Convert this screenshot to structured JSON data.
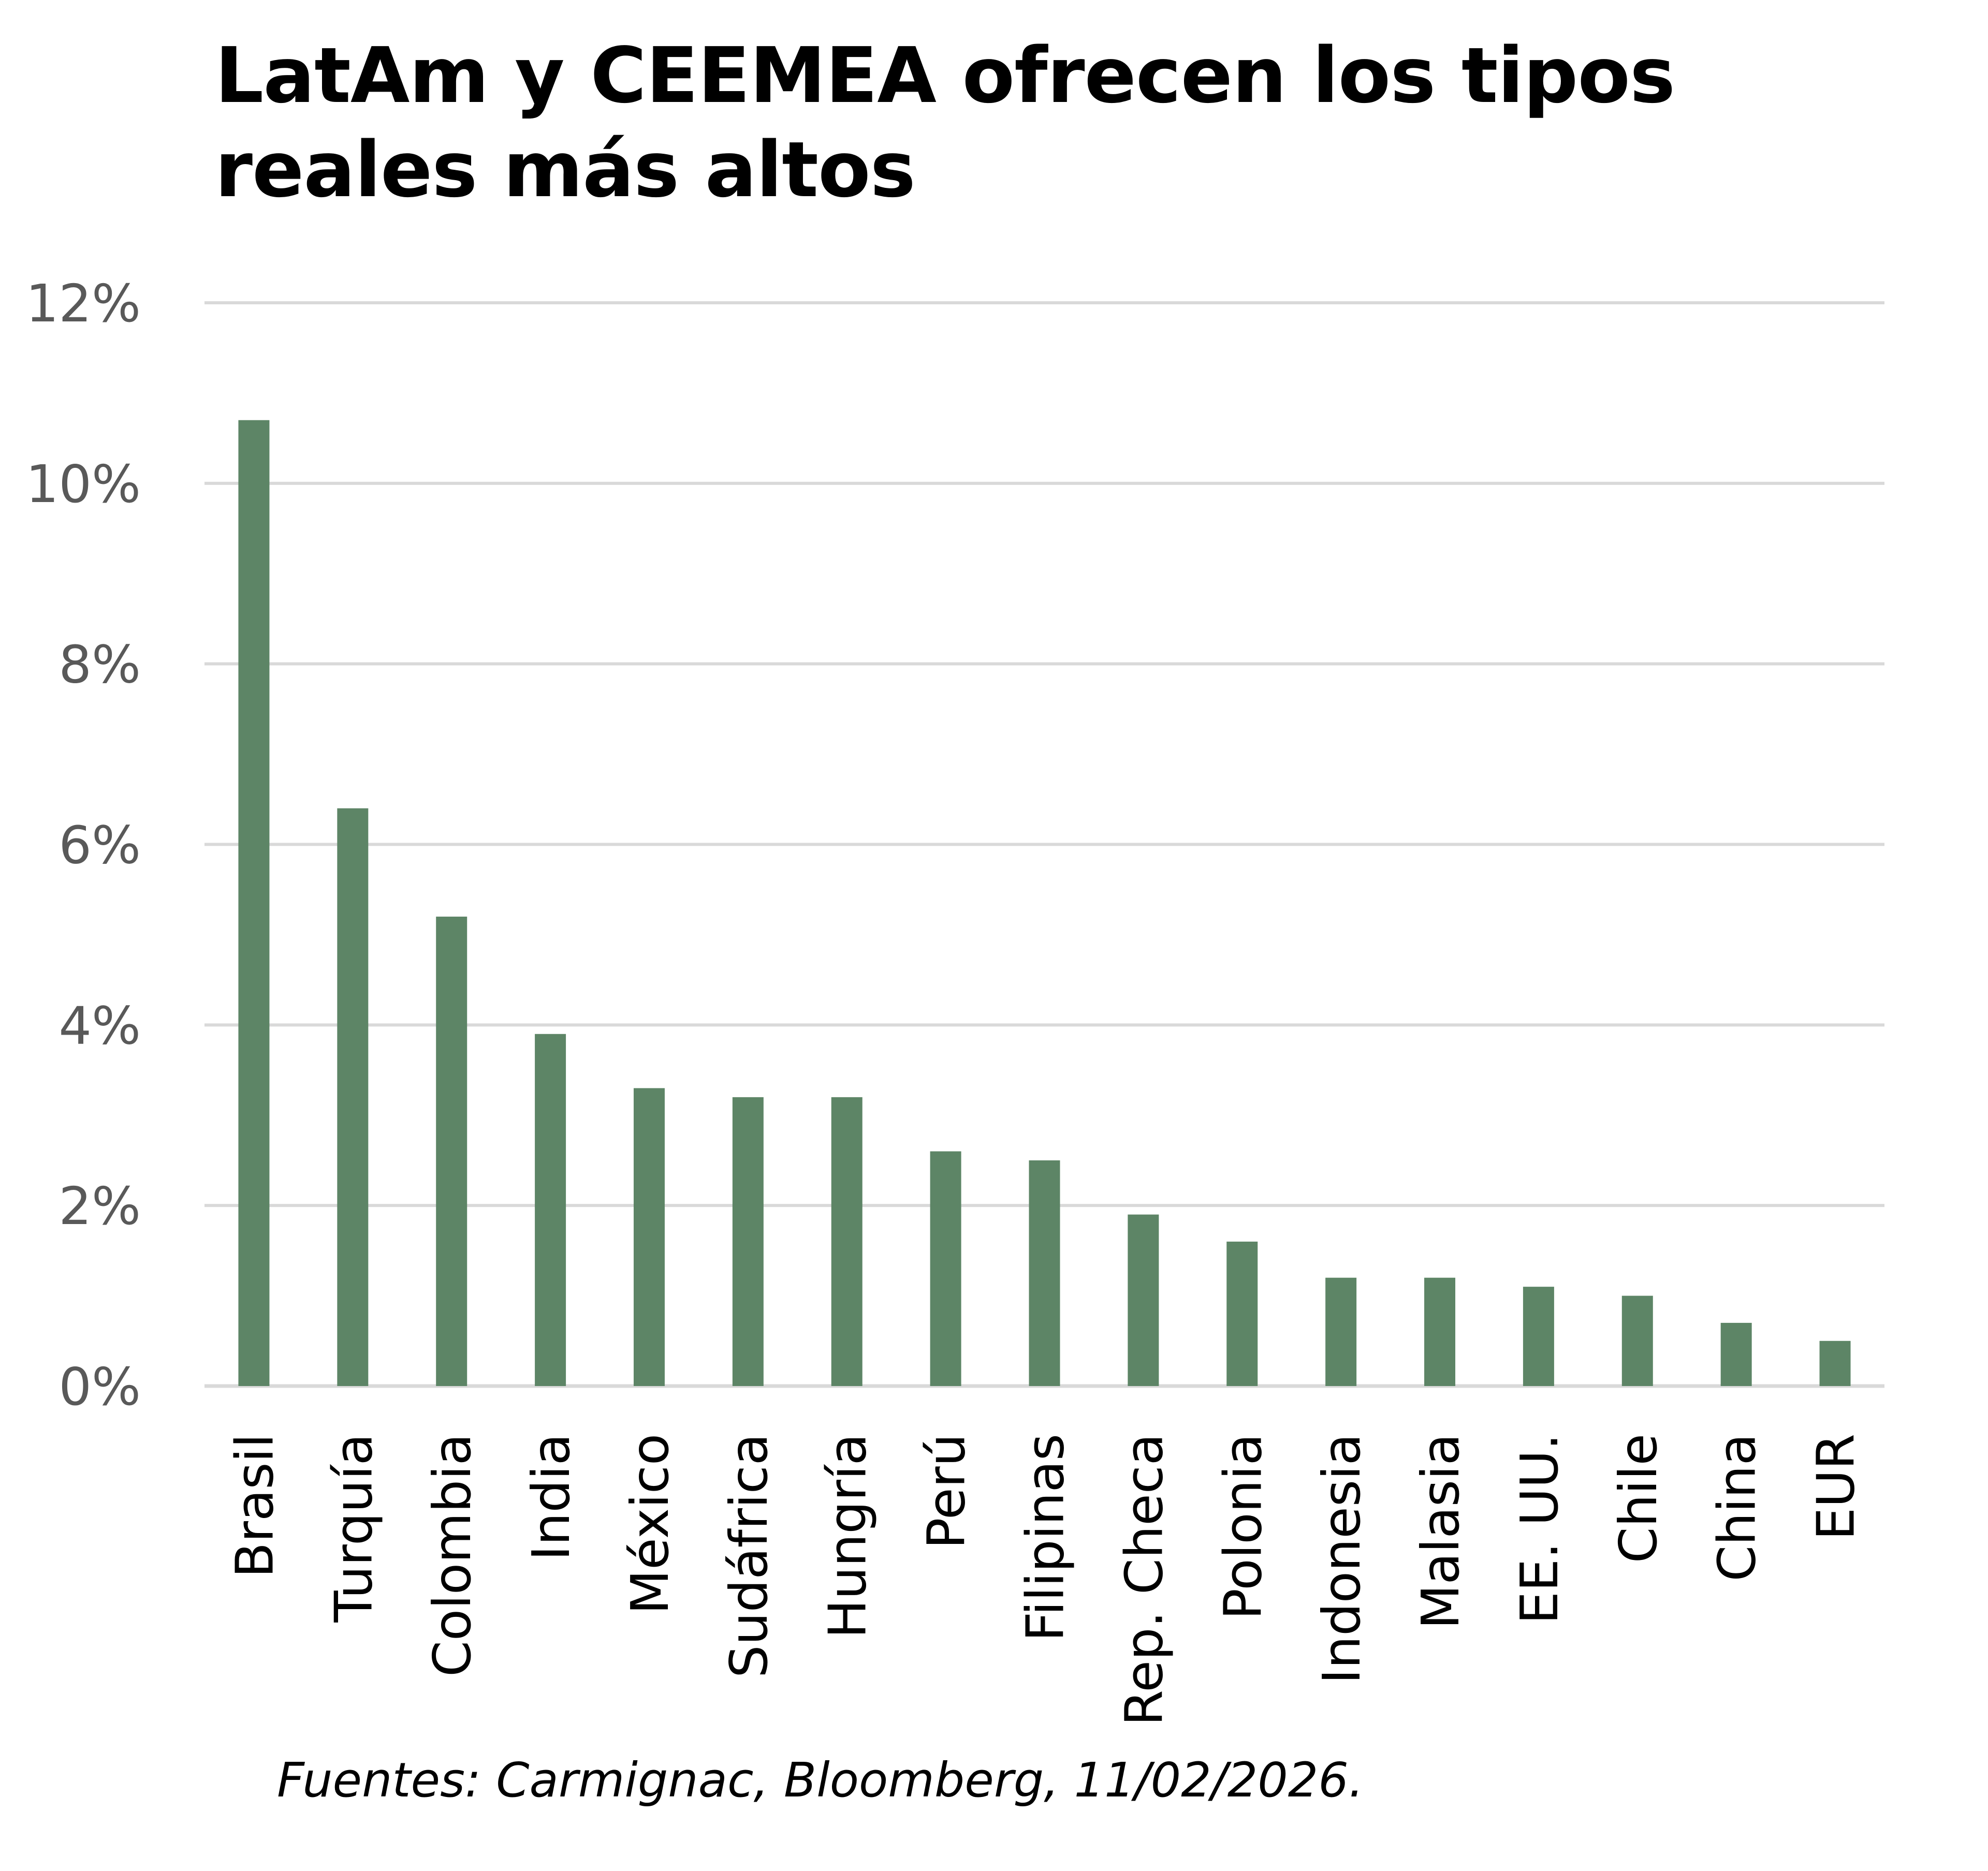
{
  "chart_data": {
    "type": "bar",
    "title": "LatAm y CEEMEA ofrecen los tipos reales más altos",
    "categories": [
      "Brasil",
      "Turquía",
      "Colombia",
      "India",
      "México",
      "Sudáfrica",
      "Hungría",
      "Perú",
      "Filipinas",
      "Rep. Checa",
      "Polonia",
      "Indonesia",
      "Malasia",
      "EE. UU.",
      "Chile",
      "China",
      "EUR"
    ],
    "values": [
      10.7,
      6.4,
      5.2,
      3.9,
      3.3,
      3.2,
      3.2,
      2.6,
      2.5,
      1.9,
      1.6,
      1.2,
      1.2,
      1.1,
      1.0,
      0.7,
      0.5
    ],
    "xlabel": "",
    "ylabel": "",
    "ylim": [
      0,
      12
    ],
    "yticks": [
      0,
      2,
      4,
      6,
      8,
      10,
      12
    ],
    "ytick_labels": [
      "0%",
      "2%",
      "4%",
      "6%",
      "8%",
      "10%",
      "12%"
    ],
    "grid": true,
    "legend": "none",
    "bar_color": "#5D8566",
    "grid_color": "#D9D9D9"
  },
  "source": "Fuentes: Carmignac, Bloomberg, 11/02/2026."
}
